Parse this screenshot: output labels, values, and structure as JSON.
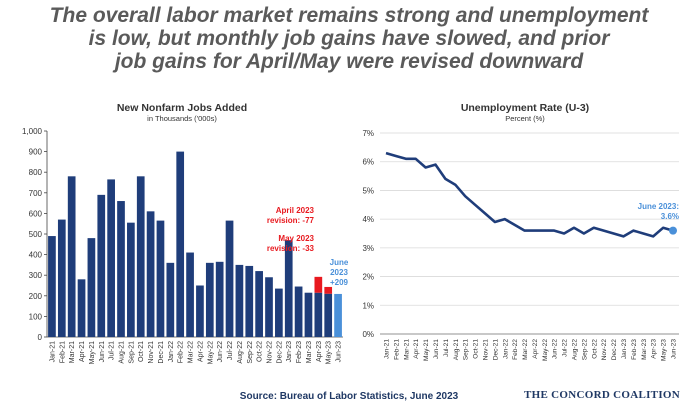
{
  "headline": {
    "line1": "The overall labor market remains strong and unemployment",
    "line2": "is low, but monthly job gains have slowed, and prior",
    "line3": "job gains for April/May were revised downward"
  },
  "source": "Source: Bureau of Labor Statistics, June 2023",
  "brand": "THE CONCORD COALITION",
  "chart_data": [
    {
      "type": "bar",
      "title": "New Nonfarm Jobs Added",
      "subtitle": "in Thousands ('000s)",
      "ylim": [
        0,
        1000
      ],
      "y_ticks": [
        0,
        100,
        200,
        300,
        400,
        500,
        600,
        700,
        800,
        900,
        1000
      ],
      "y_tick_labels": [
        "0",
        "100",
        "200",
        "300",
        "400",
        "500",
        "600",
        "700",
        "800",
        "900",
        "1,000"
      ],
      "categories": [
        "Jan-21",
        "Feb-21",
        "Mar-21",
        "Apr-21",
        "May-21",
        "Jun-21",
        "Jul-21",
        "Aug-21",
        "Sep-21",
        "Oct-21",
        "Nov-21",
        "Dec-21",
        "Jan-22",
        "Feb-22",
        "Mar-22",
        "Apr-22",
        "May-22",
        "Jun-22",
        "Jul-22",
        "Aug-22",
        "Sep-22",
        "Oct-22",
        "Nov-22",
        "Dec-22",
        "Jan-23",
        "Feb-23",
        "Mar-23",
        "Apr-23",
        "May-23",
        "Jun-23"
      ],
      "values": [
        490,
        570,
        780,
        280,
        480,
        690,
        765,
        660,
        555,
        780,
        610,
        565,
        360,
        900,
        410,
        250,
        360,
        365,
        565,
        350,
        345,
        320,
        290,
        235,
        470,
        245,
        215,
        215,
        210,
        209
      ],
      "revisions": [
        {
          "category": "Apr-23",
          "value": 77,
          "color": "#e8191f"
        },
        {
          "category": "May-23",
          "value": 33,
          "color": "#e8191f"
        }
      ],
      "bar_color": "#1f3d7a",
      "highlight_color": "#4a90d9",
      "revision_color": "#e8191f",
      "annotations": {
        "april_line1": "April 2023",
        "april_line2": "revision: -77",
        "may_line1": "May 2023",
        "may_line2": "revision: -33",
        "june_line1": "June",
        "june_line2": "2023",
        "june_line3": "+209"
      },
      "grid": false
    },
    {
      "type": "line",
      "title": "Unemployment Rate (U-3)",
      "subtitle": "Percent (%)",
      "ylim": [
        0,
        7
      ],
      "y_ticks": [
        0,
        1,
        2,
        3,
        4,
        5,
        6,
        7
      ],
      "y_tick_labels": [
        "0%",
        "1%",
        "2%",
        "3%",
        "4%",
        "5%",
        "6%",
        "7%"
      ],
      "x": [
        "Jan-21",
        "Feb-21",
        "Mar-21",
        "Apr-21",
        "May-21",
        "Jun-21",
        "Jul-21",
        "Aug-21",
        "Sep-21",
        "Oct-21",
        "Nov-21",
        "Dec-21",
        "Jan-22",
        "Feb-22",
        "Mar-22",
        "Apr-22",
        "May-22",
        "Jun-22",
        "Jul-22",
        "Aug-22",
        "Sep-22",
        "Oct-22",
        "Nov-22",
        "Dec-22",
        "Jan-23",
        "Feb-23",
        "Mar-23",
        "Apr-23",
        "May-23",
        "Jun-23"
      ],
      "values": [
        6.3,
        6.2,
        6.1,
        6.1,
        5.8,
        5.9,
        5.4,
        5.2,
        4.8,
        4.5,
        4.2,
        3.9,
        4.0,
        3.8,
        3.6,
        3.6,
        3.6,
        3.6,
        3.5,
        3.7,
        3.5,
        3.7,
        3.6,
        3.5,
        3.4,
        3.6,
        3.5,
        3.4,
        3.7,
        3.6
      ],
      "line_color": "#1f3d7a",
      "marker_color": "#4a90d9",
      "annotations": {
        "june_line1": "June 2023:",
        "june_line2": "3.6%"
      },
      "grid": true
    }
  ]
}
